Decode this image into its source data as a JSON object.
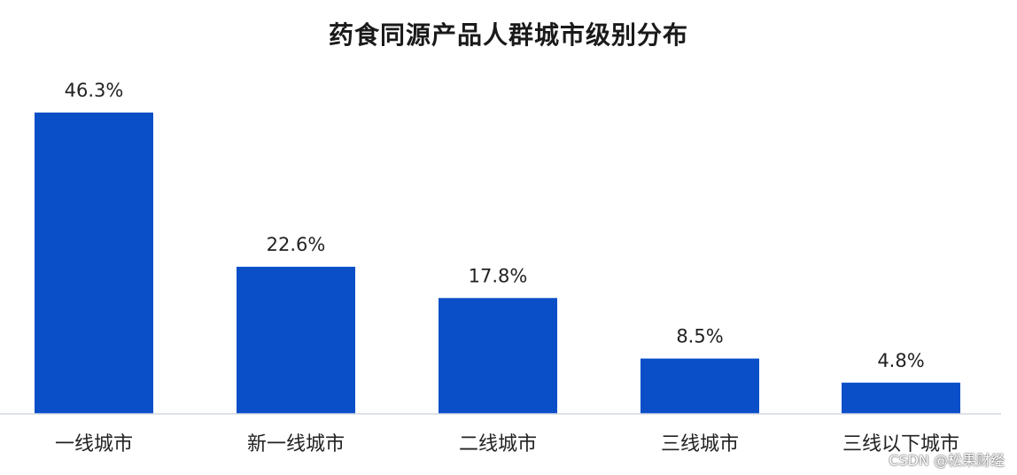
{
  "chart_data": {
    "type": "bar",
    "title": "药食同源产品人群城市级别分布",
    "categories": [
      "一线城市",
      "新一线城市",
      "二线城市",
      "三线城市",
      "三线以下城市"
    ],
    "values": [
      46.3,
      22.6,
      17.8,
      8.5,
      4.8
    ],
    "data_labels": [
      "46.3%",
      "22.6%",
      "17.8%",
      "8.5%",
      "4.8%"
    ],
    "unit": "%",
    "xlabel": "",
    "ylabel": "",
    "ylim": [
      0,
      46.3
    ],
    "grid": false,
    "legend": "none",
    "bar_color": "#0a4fc8"
  },
  "watermark": "CSDN @松果财经"
}
